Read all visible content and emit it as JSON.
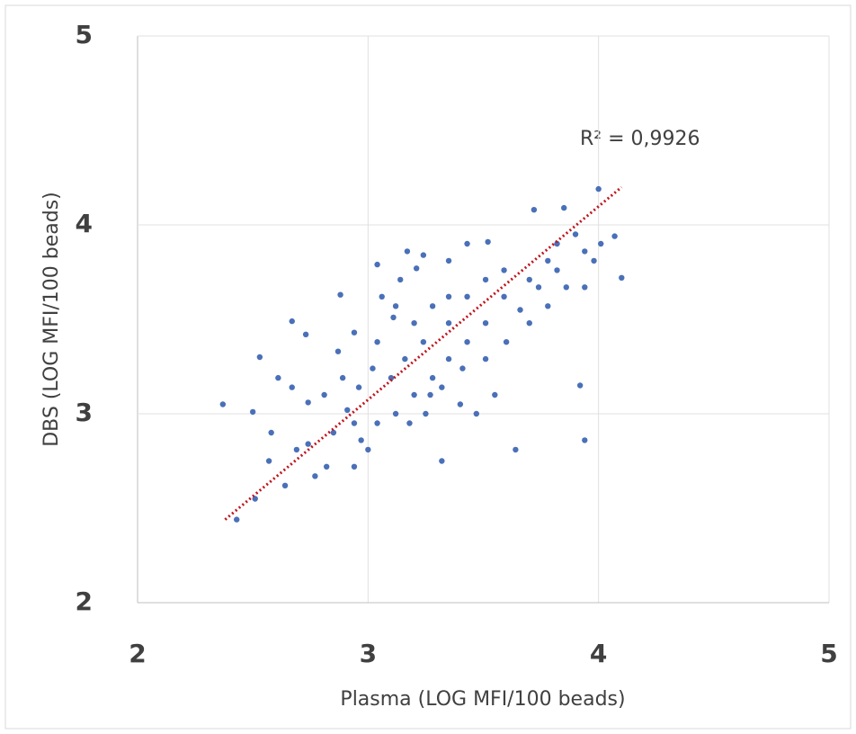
{
  "chart_data": {
    "type": "scatter",
    "x_label": "Plasma (LOG MFI/100 beads)",
    "y_label": "DBS (LOG MFI/100 beads)",
    "annotation": "R² = 0,9926",
    "x": [
      2.37,
      2.53,
      2.5,
      2.57,
      2.51,
      2.43,
      2.61,
      2.67,
      2.73,
      2.67,
      2.74,
      2.69,
      2.74,
      2.82,
      2.88,
      2.94,
      2.91,
      2.97,
      3.04,
      3.0,
      3.11,
      3.17,
      3.21,
      3.24,
      3.32,
      3.27,
      3.35,
      3.43,
      3.52,
      3.64,
      3.72,
      3.85,
      3.92,
      3.94,
      4.0,
      4.1,
      4.07,
      3.98,
      3.9,
      3.82,
      3.74,
      3.66,
      3.59,
      3.51,
      3.43,
      3.35,
      3.28,
      3.2,
      3.12,
      3.04,
      2.96,
      2.89,
      2.81,
      3.04,
      3.12,
      3.2,
      3.28,
      3.35,
      3.43,
      3.51,
      3.59,
      3.16,
      3.24,
      3.32,
      3.4,
      3.47,
      3.55,
      3.82,
      3.94,
      3.86,
      3.78,
      3.7,
      2.87,
      2.94,
      3.02,
      3.1,
      3.18,
      3.25,
      3.06,
      3.14,
      3.35,
      3.41,
      3.51,
      3.6,
      3.7,
      3.78,
      3.94,
      4.01,
      2.58,
      2.64,
      2.77,
      2.85,
      2.94
    ],
    "values": [
      3.05,
      3.3,
      3.01,
      2.75,
      2.55,
      2.44,
      3.19,
      3.49,
      3.42,
      3.14,
      3.06,
      2.81,
      2.84,
      2.72,
      3.63,
      2.72,
      3.02,
      2.86,
      3.79,
      2.81,
      3.51,
      3.86,
      3.77,
      3.84,
      2.75,
      3.1,
      3.81,
      3.9,
      3.91,
      2.81,
      4.08,
      4.09,
      3.15,
      2.86,
      4.19,
      3.72,
      3.94,
      3.81,
      3.95,
      3.76,
      3.67,
      3.55,
      3.62,
      3.48,
      3.38,
      3.29,
      3.19,
      3.1,
      3.0,
      2.95,
      3.14,
      3.19,
      3.1,
      3.38,
      3.57,
      3.48,
      3.57,
      3.48,
      3.62,
      3.71,
      3.76,
      3.29,
      3.38,
      3.14,
      3.05,
      3.0,
      3.1,
      3.9,
      3.86,
      3.67,
      3.81,
      3.71,
      3.33,
      3.43,
      3.24,
      3.19,
      2.95,
      3.0,
      3.62,
      3.71,
      3.62,
      3.24,
      3.29,
      3.38,
      3.48,
      3.57,
      3.67,
      3.9,
      2.9,
      2.62,
      2.67,
      2.9,
      2.95
    ],
    "color": "#4a70b8",
    "trendline": {
      "x": [
        2.38,
        4.1
      ],
      "y": [
        2.44,
        4.2
      ],
      "color": "#c0141c"
    },
    "xlim": [
      2,
      5
    ],
    "ylim": [
      2,
      5
    ],
    "xticks": [
      2,
      3,
      4,
      5
    ],
    "yticks": [
      2,
      3,
      4,
      5
    ],
    "grid": true
  }
}
